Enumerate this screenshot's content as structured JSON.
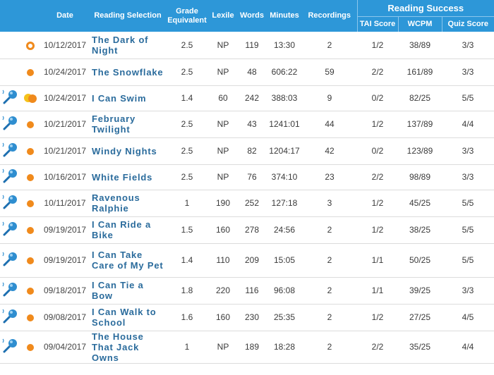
{
  "colors": {
    "header": "#2d97d8",
    "title_link": "#2a6b9c",
    "dot": "#f08a1c",
    "dot_alt": "#f5c21b",
    "mic": "#2f8ed0"
  },
  "headers": {
    "date": "Date",
    "reading_selection": "Reading Selection",
    "grade_equivalent": "Grade Equivalent",
    "lexile": "Lexile",
    "words": "Words",
    "minutes": "Minutes",
    "recordings": "Recordings",
    "reading_success": "Reading Success",
    "tai_score": "TAI Score",
    "wcpm": "WCPM",
    "quiz_score": "Quiz Score"
  },
  "rows": [
    {
      "mic": false,
      "status": "ring",
      "date": "10/12/2017",
      "title": "The Dark of Night",
      "grade": "2.5",
      "lexile": "NP",
      "words": "119",
      "minutes": "13:30",
      "recordings": "2",
      "tai": "1/2",
      "wcpm": "38/89",
      "quiz": "3/3"
    },
    {
      "mic": false,
      "status": "dot",
      "date": "10/24/2017",
      "title": "The Snowflake",
      "grade": "2.5",
      "lexile": "NP",
      "words": "48",
      "minutes": "606:22",
      "recordings": "59",
      "tai": "2/2",
      "wcpm": "161/89",
      "quiz": "3/3"
    },
    {
      "mic": true,
      "status": "double",
      "date": "10/24/2017",
      "title": "I Can Swim",
      "grade": "1.4",
      "lexile": "60",
      "words": "242",
      "minutes": "388:03",
      "recordings": "9",
      "tai": "0/2",
      "wcpm": "82/25",
      "quiz": "5/5"
    },
    {
      "mic": true,
      "status": "dot",
      "date": "10/21/2017",
      "title": "February Twilight",
      "grade": "2.5",
      "lexile": "NP",
      "words": "43",
      "minutes": "1241:01",
      "recordings": "44",
      "tai": "1/2",
      "wcpm": "137/89",
      "quiz": "4/4"
    },
    {
      "mic": true,
      "status": "dot",
      "date": "10/21/2017",
      "title": "Windy Nights",
      "grade": "2.5",
      "lexile": "NP",
      "words": "82",
      "minutes": "1204:17",
      "recordings": "42",
      "tai": "0/2",
      "wcpm": "123/89",
      "quiz": "3/3"
    },
    {
      "mic": true,
      "status": "dot",
      "date": "10/16/2017",
      "title": "White Fields",
      "grade": "2.5",
      "lexile": "NP",
      "words": "76",
      "minutes": "374:10",
      "recordings": "23",
      "tai": "2/2",
      "wcpm": "98/89",
      "quiz": "3/3"
    },
    {
      "mic": true,
      "status": "dot",
      "date": "10/11/2017",
      "title": "Ravenous Ralphie",
      "grade": "1",
      "lexile": "190",
      "words": "252",
      "minutes": "127:18",
      "recordings": "3",
      "tai": "1/2",
      "wcpm": "45/25",
      "quiz": "5/5"
    },
    {
      "mic": true,
      "status": "dot",
      "date": "09/19/2017",
      "title": "I Can Ride a Bike",
      "grade": "1.5",
      "lexile": "160",
      "words": "278",
      "minutes": "24:56",
      "recordings": "2",
      "tai": "1/2",
      "wcpm": "38/25",
      "quiz": "5/5"
    },
    {
      "mic": true,
      "status": "dot",
      "date": "09/19/2017",
      "title": "I Can Take Care of My Pet",
      "grade": "1.4",
      "lexile": "110",
      "words": "209",
      "minutes": "15:05",
      "recordings": "2",
      "tai": "1/1",
      "wcpm": "50/25",
      "quiz": "5/5"
    },
    {
      "mic": true,
      "status": "dot",
      "date": "09/18/2017",
      "title": "I Can Tie a Bow",
      "grade": "1.8",
      "lexile": "220",
      "words": "116",
      "minutes": "96:08",
      "recordings": "2",
      "tai": "1/1",
      "wcpm": "39/25",
      "quiz": "3/3"
    },
    {
      "mic": true,
      "status": "dot",
      "date": "09/08/2017",
      "title": "I Can Walk to School",
      "grade": "1.6",
      "lexile": "160",
      "words": "230",
      "minutes": "25:35",
      "recordings": "2",
      "tai": "1/2",
      "wcpm": "27/25",
      "quiz": "4/5"
    },
    {
      "mic": true,
      "status": "dot",
      "date": "09/04/2017",
      "title": "The House That Jack Owns",
      "grade": "1",
      "lexile": "NP",
      "words": "189",
      "minutes": "18:28",
      "recordings": "2",
      "tai": "2/2",
      "wcpm": "35/25",
      "quiz": "4/4"
    }
  ]
}
